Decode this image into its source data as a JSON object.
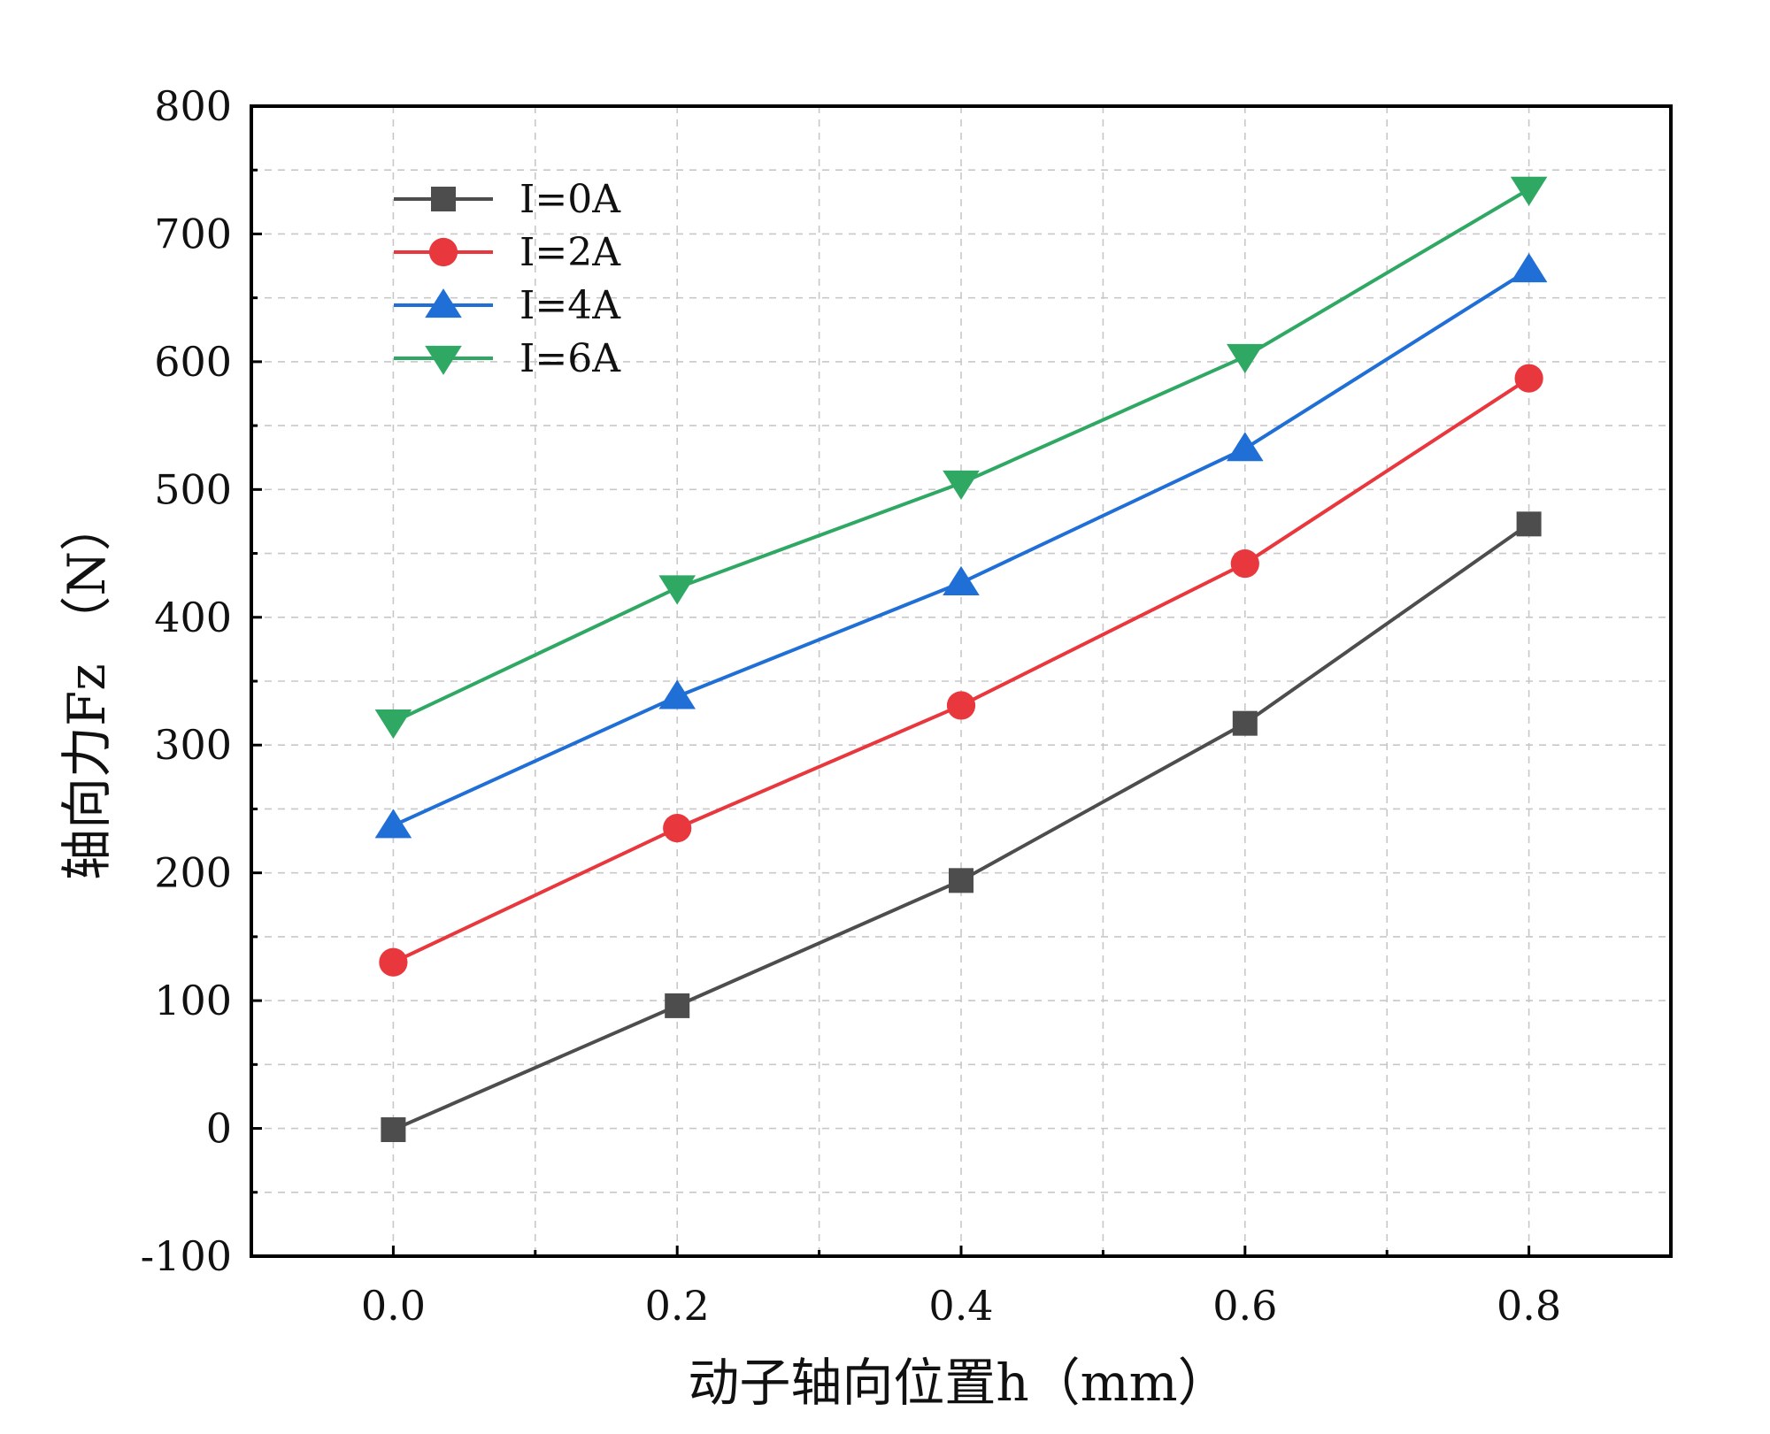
{
  "chart_data": {
    "type": "line",
    "title": "",
    "xlabel": "动子轴向位置h（mm）",
    "ylabel": "轴向力Fz （N）",
    "xlim": [
      -0.1,
      0.9
    ],
    "ylim": [
      -100,
      800
    ],
    "xticks": [
      0.0,
      0.2,
      0.4,
      0.6,
      0.8
    ],
    "xtick_labels": [
      "0.0",
      "0.2",
      "0.4",
      "0.6",
      "0.8"
    ],
    "yticks": [
      -100,
      0,
      100,
      200,
      300,
      400,
      500,
      600,
      700,
      800
    ],
    "ytick_labels": [
      "-100",
      "0",
      "100",
      "200",
      "300",
      "400",
      "500",
      "600",
      "700",
      "800"
    ],
    "grid": true,
    "legend_position": "top-left",
    "x": [
      0.0,
      0.2,
      0.4,
      0.6,
      0.8
    ],
    "series": [
      {
        "name": "I=0A",
        "color": "#4d4d4d",
        "marker": "square",
        "values": [
          -1,
          96,
          194,
          317,
          473
        ]
      },
      {
        "name": "I=2A",
        "color": "#e8373d",
        "marker": "circle",
        "values": [
          130,
          235,
          331,
          442,
          587
        ]
      },
      {
        "name": "I=4A",
        "color": "#1f6fd6",
        "marker": "triangle-up",
        "values": [
          237,
          338,
          427,
          532,
          672
        ]
      },
      {
        "name": "I=6A",
        "color": "#2fa864",
        "marker": "triangle-down",
        "values": [
          318,
          423,
          505,
          604,
          735
        ]
      }
    ]
  }
}
